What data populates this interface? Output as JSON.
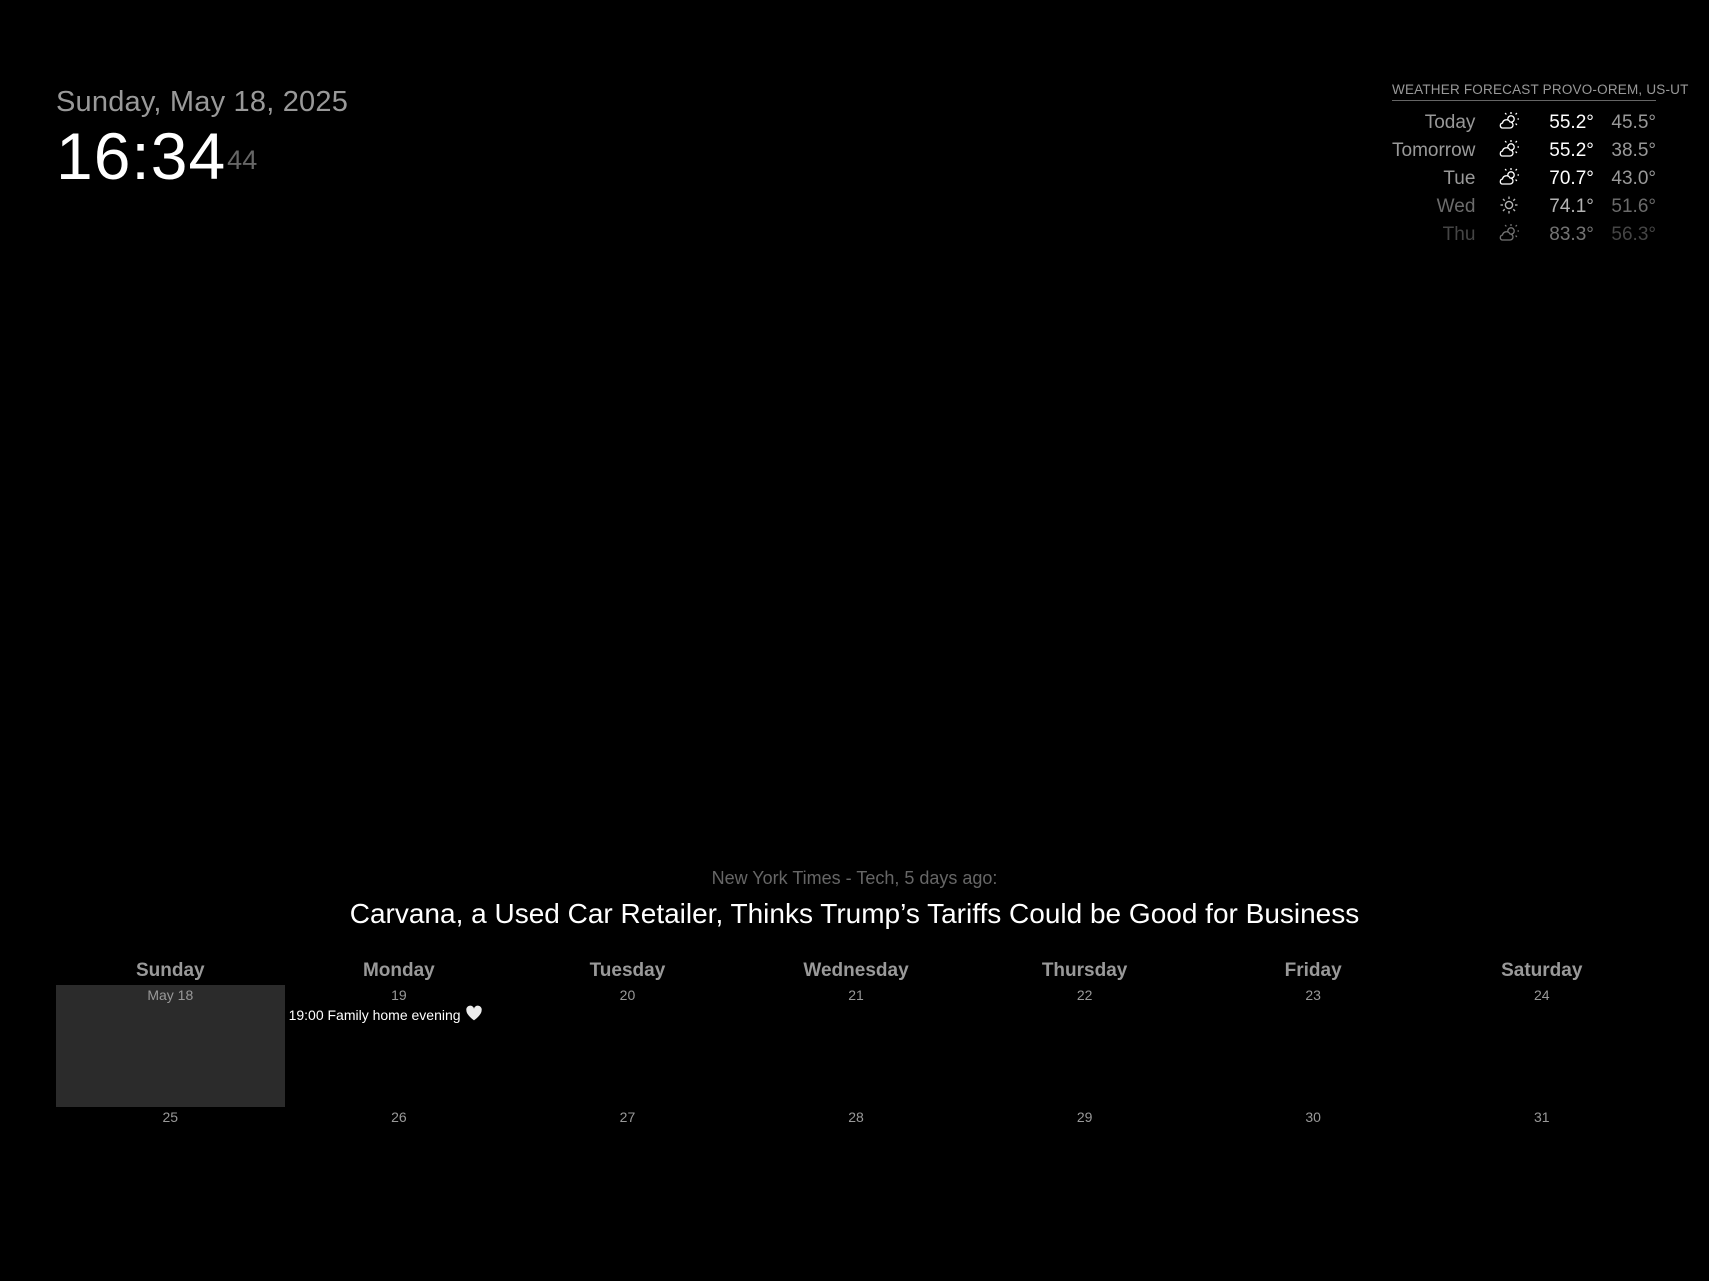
{
  "clock": {
    "date": "Sunday, May 18, 2025",
    "time_hm": "16:34",
    "time_seconds": "44"
  },
  "weather": {
    "header": "WEATHER FORECAST PROVO-OREM, US-UT",
    "days": [
      {
        "day": "Today",
        "icon": "partly-cloudy-day-icon",
        "max": "55.2°",
        "min": "45.5°",
        "opacity": 1
      },
      {
        "day": "Tomorrow",
        "icon": "partly-cloudy-day-icon",
        "max": "55.2°",
        "min": "38.5°",
        "opacity": 1
      },
      {
        "day": "Tue",
        "icon": "partly-cloudy-day-icon",
        "max": "70.7°",
        "min": "43.0°",
        "opacity": 1
      },
      {
        "day": "Wed",
        "icon": "sunny-icon",
        "max": "74.1°",
        "min": "51.6°",
        "opacity": 0.7
      },
      {
        "day": "Thu",
        "icon": "partly-cloudy-day-icon",
        "max": "83.3°",
        "min": "56.3°",
        "opacity": 0.45
      }
    ]
  },
  "news": {
    "source": "New York Times - Tech, 5 days ago:",
    "headline": "Carvana, a Used Car Retailer, Thinks Trump’s Tariffs Could be Good for Business"
  },
  "calendar": {
    "weekdays": [
      "Sunday",
      "Monday",
      "Tuesday",
      "Wednesday",
      "Thursday",
      "Friday",
      "Saturday"
    ],
    "weeks": [
      [
        {
          "label": "May 18",
          "today": true
        },
        {
          "label": "19",
          "event": "19:00 Family home evening",
          "event_icon": "heart-icon"
        },
        {
          "label": "20"
        },
        {
          "label": "21"
        },
        {
          "label": "22"
        },
        {
          "label": "23"
        },
        {
          "label": "24"
        }
      ],
      [
        {
          "label": "25"
        },
        {
          "label": "26"
        },
        {
          "label": "27"
        },
        {
          "label": "28"
        },
        {
          "label": "29"
        },
        {
          "label": "30"
        },
        {
          "label": "31"
        }
      ]
    ]
  },
  "colors": {
    "background": "#000000",
    "primary_text": "#ffffff",
    "dim_text": "#999999",
    "dimmer_text": "#666666",
    "today_cell": "#2b2b2b"
  }
}
